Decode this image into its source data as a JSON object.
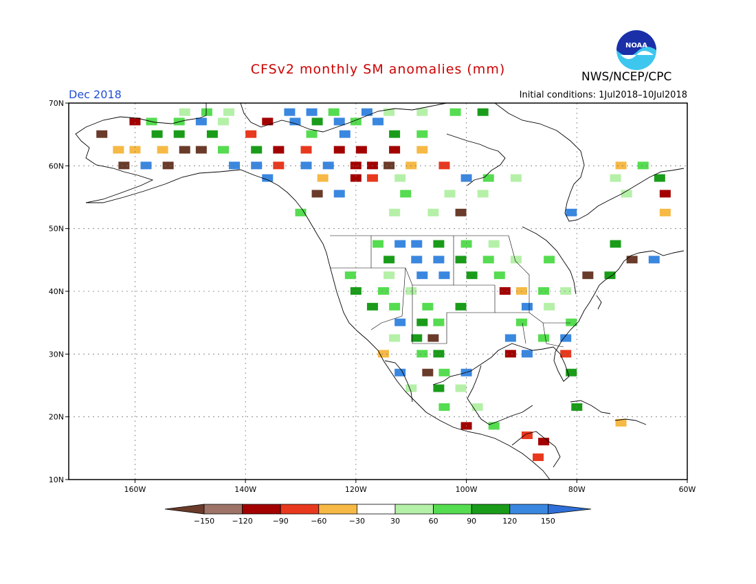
{
  "title": "CFSv2 monthly SM anomalies (mm)",
  "month_label": "Dec 2018",
  "initial_conditions": "Initial conditions:  1Jul2018–10Jul2018",
  "agency": "NWS/NCEP/CPC",
  "logo_text": "NOAA",
  "map": {
    "lon_range": [
      -172,
      -60
    ],
    "lat_range": [
      10,
      70
    ],
    "lat_ticks": [
      {
        "value": 70,
        "label": "70N"
      },
      {
        "value": 60,
        "label": "60N"
      },
      {
        "value": 50,
        "label": "50N"
      },
      {
        "value": 40,
        "label": "40N"
      },
      {
        "value": 30,
        "label": "30N"
      },
      {
        "value": 20,
        "label": "20N"
      },
      {
        "value": 10,
        "label": "10N"
      }
    ],
    "lon_ticks": [
      {
        "value": -160,
        "label": "160W"
      },
      {
        "value": -140,
        "label": "140W"
      },
      {
        "value": -120,
        "label": "120W"
      },
      {
        "value": -100,
        "label": "100W"
      },
      {
        "value": -80,
        "label": "80W"
      },
      {
        "value": -60,
        "label": "60W"
      }
    ],
    "grid": true
  },
  "colorbar": {
    "colors": [
      "#6a3b2a",
      "#9e7468",
      "#a30000",
      "#e8391e",
      "#f6b945",
      "#ffffff",
      "#b5f0a8",
      "#55dc50",
      "#1a9c1a",
      "#3a87e0",
      "#2f6fd8"
    ],
    "labels": [
      "−150",
      "−120",
      "−90",
      "−60",
      "−30",
      "30",
      "60",
      "90",
      "120",
      "150"
    ]
  },
  "anomaly_cells": [
    {
      "lon": -151,
      "lat": 68.5,
      "v": "g1"
    },
    {
      "lon": -147,
      "lat": 68.5,
      "v": "g2"
    },
    {
      "lon": -143,
      "lat": 68.5,
      "v": "g1"
    },
    {
      "lon": -132,
      "lat": 68.5,
      "v": "b"
    },
    {
      "lon": -128,
      "lat": 68.5,
      "v": "b"
    },
    {
      "lon": -124,
      "lat": 68.5,
      "v": "g2"
    },
    {
      "lon": -118,
      "lat": 68.5,
      "v": "b"
    },
    {
      "lon": -114,
      "lat": 68.5,
      "v": "g1"
    },
    {
      "lon": -108,
      "lat": 68.5,
      "v": "g1"
    },
    {
      "lon": -102,
      "lat": 68.5,
      "v": "g2"
    },
    {
      "lon": -97,
      "lat": 68.5,
      "v": "g3"
    },
    {
      "lon": -160,
      "lat": 67,
      "v": "r"
    },
    {
      "lon": -157,
      "lat": 67,
      "v": "g2"
    },
    {
      "lon": -152,
      "lat": 67,
      "v": "g2"
    },
    {
      "lon": -148,
      "lat": 67,
      "v": "b"
    },
    {
      "lon": -144,
      "lat": 67,
      "v": "g1"
    },
    {
      "lon": -136,
      "lat": 67,
      "v": "r"
    },
    {
      "lon": -131,
      "lat": 67,
      "v": "b"
    },
    {
      "lon": -127,
      "lat": 67,
      "v": "g3"
    },
    {
      "lon": -123,
      "lat": 67,
      "v": "b"
    },
    {
      "lon": -120,
      "lat": 67,
      "v": "g2"
    },
    {
      "lon": -116,
      "lat": 67,
      "v": "b"
    },
    {
      "lon": -166,
      "lat": 65,
      "v": "br"
    },
    {
      "lon": -156,
      "lat": 65,
      "v": "g3"
    },
    {
      "lon": -152,
      "lat": 65,
      "v": "g3"
    },
    {
      "lon": -146,
      "lat": 65,
      "v": "g3"
    },
    {
      "lon": -139,
      "lat": 65,
      "v": "o"
    },
    {
      "lon": -128,
      "lat": 65,
      "v": "g2"
    },
    {
      "lon": -122,
      "lat": 65,
      "v": "b"
    },
    {
      "lon": -113,
      "lat": 65,
      "v": "g3"
    },
    {
      "lon": -108,
      "lat": 65,
      "v": "g2"
    },
    {
      "lon": -163,
      "lat": 62.5,
      "v": "y"
    },
    {
      "lon": -160,
      "lat": 62.5,
      "v": "y"
    },
    {
      "lon": -155,
      "lat": 62.5,
      "v": "y"
    },
    {
      "lon": -151,
      "lat": 62.5,
      "v": "br"
    },
    {
      "lon": -148,
      "lat": 62.5,
      "v": "br"
    },
    {
      "lon": -144,
      "lat": 62.5,
      "v": "g2"
    },
    {
      "lon": -138,
      "lat": 62.5,
      "v": "g3"
    },
    {
      "lon": -134,
      "lat": 62.5,
      "v": "r"
    },
    {
      "lon": -129,
      "lat": 62.5,
      "v": "o"
    },
    {
      "lon": -123,
      "lat": 62.5,
      "v": "r"
    },
    {
      "lon": -119,
      "lat": 62.5,
      "v": "r"
    },
    {
      "lon": -113,
      "lat": 62.5,
      "v": "r"
    },
    {
      "lon": -108,
      "lat": 62.5,
      "v": "y"
    },
    {
      "lon": -162,
      "lat": 60,
      "v": "br"
    },
    {
      "lon": -158,
      "lat": 60,
      "v": "b"
    },
    {
      "lon": -154,
      "lat": 60,
      "v": "br"
    },
    {
      "lon": -142,
      "lat": 60,
      "v": "b"
    },
    {
      "lon": -138,
      "lat": 60,
      "v": "b"
    },
    {
      "lon": -134,
      "lat": 60,
      "v": "o"
    },
    {
      "lon": -129,
      "lat": 60,
      "v": "b"
    },
    {
      "lon": -125,
      "lat": 60,
      "v": "b"
    },
    {
      "lon": -120,
      "lat": 60,
      "v": "r"
    },
    {
      "lon": -117,
      "lat": 60,
      "v": "r"
    },
    {
      "lon": -114,
      "lat": 60,
      "v": "br"
    },
    {
      "lon": -110,
      "lat": 60,
      "v": "y"
    },
    {
      "lon": -104,
      "lat": 60,
      "v": "o"
    },
    {
      "lon": -72,
      "lat": 60,
      "v": "y"
    },
    {
      "lon": -68,
      "lat": 60,
      "v": "g2"
    },
    {
      "lon": -136,
      "lat": 58,
      "v": "b"
    },
    {
      "lon": -126,
      "lat": 58,
      "v": "y"
    },
    {
      "lon": -120,
      "lat": 58,
      "v": "r"
    },
    {
      "lon": -117,
      "lat": 58,
      "v": "o"
    },
    {
      "lon": -112,
      "lat": 58,
      "v": "g1"
    },
    {
      "lon": -100,
      "lat": 58,
      "v": "b"
    },
    {
      "lon": -96,
      "lat": 58,
      "v": "g2"
    },
    {
      "lon": -91,
      "lat": 58,
      "v": "g1"
    },
    {
      "lon": -73,
      "lat": 58,
      "v": "g1"
    },
    {
      "lon": -65,
      "lat": 58,
      "v": "g3"
    },
    {
      "lon": -127,
      "lat": 55.5,
      "v": "br"
    },
    {
      "lon": -123,
      "lat": 55.5,
      "v": "b"
    },
    {
      "lon": -111,
      "lat": 55.5,
      "v": "g2"
    },
    {
      "lon": -103,
      "lat": 55.5,
      "v": "g1"
    },
    {
      "lon": -97,
      "lat": 55.5,
      "v": "g1"
    },
    {
      "lon": -71,
      "lat": 55.5,
      "v": "g1"
    },
    {
      "lon": -64,
      "lat": 55.5,
      "v": "r"
    },
    {
      "lon": -130,
      "lat": 52.5,
      "v": "g2"
    },
    {
      "lon": -113,
      "lat": 52.5,
      "v": "g1"
    },
    {
      "lon": -106,
      "lat": 52.5,
      "v": "g1"
    },
    {
      "lon": -101,
      "lat": 52.5,
      "v": "br"
    },
    {
      "lon": -81,
      "lat": 52.5,
      "v": "b"
    },
    {
      "lon": -64,
      "lat": 52.5,
      "v": "y"
    },
    {
      "lon": -116,
      "lat": 47.5,
      "v": "g2"
    },
    {
      "lon": -112,
      "lat": 47.5,
      "v": "b"
    },
    {
      "lon": -109,
      "lat": 47.5,
      "v": "b"
    },
    {
      "lon": -105,
      "lat": 47.5,
      "v": "g3"
    },
    {
      "lon": -100,
      "lat": 47.5,
      "v": "g2"
    },
    {
      "lon": -95,
      "lat": 47.5,
      "v": "g1"
    },
    {
      "lon": -73,
      "lat": 47.5,
      "v": "g3"
    },
    {
      "lon": -114,
      "lat": 45,
      "v": "g3"
    },
    {
      "lon": -109,
      "lat": 45,
      "v": "b"
    },
    {
      "lon": -105,
      "lat": 45,
      "v": "b"
    },
    {
      "lon": -101,
      "lat": 45,
      "v": "g3"
    },
    {
      "lon": -96,
      "lat": 45,
      "v": "g2"
    },
    {
      "lon": -91,
      "lat": 45,
      "v": "g1"
    },
    {
      "lon": -85,
      "lat": 45,
      "v": "g2"
    },
    {
      "lon": -70,
      "lat": 45,
      "v": "br"
    },
    {
      "lon": -66,
      "lat": 45,
      "v": "b"
    },
    {
      "lon": -121,
      "lat": 42.5,
      "v": "g2"
    },
    {
      "lon": -114,
      "lat": 42.5,
      "v": "g1"
    },
    {
      "lon": -108,
      "lat": 42.5,
      "v": "b"
    },
    {
      "lon": -104,
      "lat": 42.5,
      "v": "b"
    },
    {
      "lon": -99,
      "lat": 42.5,
      "v": "g3"
    },
    {
      "lon": -94,
      "lat": 42.5,
      "v": "g2"
    },
    {
      "lon": -78,
      "lat": 42.5,
      "v": "br"
    },
    {
      "lon": -74,
      "lat": 42.5,
      "v": "g3"
    },
    {
      "lon": -120,
      "lat": 40,
      "v": "g3"
    },
    {
      "lon": -115,
      "lat": 40,
      "v": "g2"
    },
    {
      "lon": -110,
      "lat": 40,
      "v": "g1"
    },
    {
      "lon": -93,
      "lat": 40,
      "v": "r"
    },
    {
      "lon": -90,
      "lat": 40,
      "v": "y"
    },
    {
      "lon": -86,
      "lat": 40,
      "v": "g2"
    },
    {
      "lon": -82,
      "lat": 40,
      "v": "g1"
    },
    {
      "lon": -117,
      "lat": 37.5,
      "v": "g3"
    },
    {
      "lon": -113,
      "lat": 37.5,
      "v": "g2"
    },
    {
      "lon": -107,
      "lat": 37.5,
      "v": "g2"
    },
    {
      "lon": -101,
      "lat": 37.5,
      "v": "g3"
    },
    {
      "lon": -89,
      "lat": 37.5,
      "v": "b"
    },
    {
      "lon": -85,
      "lat": 37.5,
      "v": "g1"
    },
    {
      "lon": -112,
      "lat": 35,
      "v": "b"
    },
    {
      "lon": -108,
      "lat": 35,
      "v": "g3"
    },
    {
      "lon": -105,
      "lat": 35,
      "v": "g2"
    },
    {
      "lon": -90,
      "lat": 35,
      "v": "g2"
    },
    {
      "lon": -81,
      "lat": 35,
      "v": "g2"
    },
    {
      "lon": -113,
      "lat": 32.5,
      "v": "g1"
    },
    {
      "lon": -109,
      "lat": 32.5,
      "v": "g3"
    },
    {
      "lon": -106,
      "lat": 32.5,
      "v": "br"
    },
    {
      "lon": -92,
      "lat": 32.5,
      "v": "b"
    },
    {
      "lon": -86,
      "lat": 32.5,
      "v": "g2"
    },
    {
      "lon": -82,
      "lat": 32.5,
      "v": "b"
    },
    {
      "lon": -115,
      "lat": 30,
      "v": "y"
    },
    {
      "lon": -108,
      "lat": 30,
      "v": "g2"
    },
    {
      "lon": -105,
      "lat": 30,
      "v": "g3"
    },
    {
      "lon": -92,
      "lat": 30,
      "v": "r"
    },
    {
      "lon": -89,
      "lat": 30,
      "v": "b"
    },
    {
      "lon": -82,
      "lat": 30,
      "v": "o"
    },
    {
      "lon": -112,
      "lat": 27,
      "v": "b"
    },
    {
      "lon": -107,
      "lat": 27,
      "v": "br"
    },
    {
      "lon": -104,
      "lat": 27,
      "v": "g2"
    },
    {
      "lon": -100,
      "lat": 27,
      "v": "b"
    },
    {
      "lon": -81,
      "lat": 27,
      "v": "g3"
    },
    {
      "lon": -110,
      "lat": 24.5,
      "v": "g1"
    },
    {
      "lon": -105,
      "lat": 24.5,
      "v": "g3"
    },
    {
      "lon": -101,
      "lat": 24.5,
      "v": "g1"
    },
    {
      "lon": -104,
      "lat": 21.5,
      "v": "g2"
    },
    {
      "lon": -98,
      "lat": 21.5,
      "v": "g1"
    },
    {
      "lon": -80,
      "lat": 21.5,
      "v": "g3"
    },
    {
      "lon": -72,
      "lat": 19,
      "v": "y"
    },
    {
      "lon": -100,
      "lat": 18.5,
      "v": "r"
    },
    {
      "lon": -95,
      "lat": 18.5,
      "v": "g2"
    },
    {
      "lon": -89,
      "lat": 17,
      "v": "o"
    },
    {
      "lon": -86,
      "lat": 16,
      "v": "r"
    },
    {
      "lon": -87,
      "lat": 13.5,
      "v": "o"
    }
  ]
}
